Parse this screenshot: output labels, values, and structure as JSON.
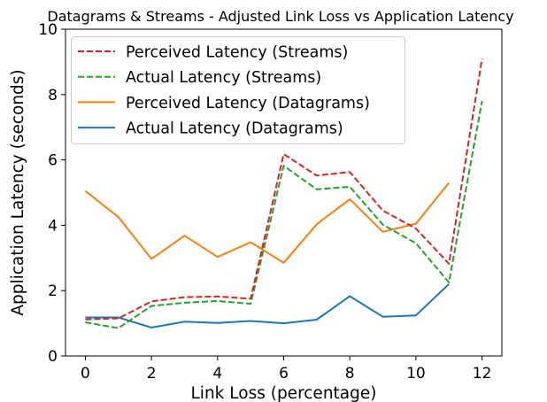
{
  "chart_data": {
    "type": "line",
    "title": "Datagrams & Streams - Adjusted Link Loss vs Application Latency",
    "xlabel": "Link Loss (percentage)",
    "ylabel": "Application Latency (seconds)",
    "xlim": [
      -0.6,
      12.6
    ],
    "ylim": [
      0,
      10
    ],
    "xticks": [
      0,
      2,
      4,
      6,
      8,
      10,
      12
    ],
    "yticks": [
      0,
      2,
      4,
      6,
      8,
      10
    ],
    "grid": false,
    "legend_position": "top-left",
    "series": [
      {
        "name": "Perceived Latency (Streams)",
        "color": "#d62728",
        "style": "dashed",
        "x": [
          0,
          1,
          2,
          3,
          4,
          5,
          6,
          7,
          8,
          9,
          10,
          11,
          12
        ],
        "y": [
          1.12,
          1.15,
          1.67,
          1.8,
          1.82,
          1.75,
          6.18,
          5.52,
          5.63,
          4.45,
          3.9,
          2.82,
          9.1
        ]
      },
      {
        "name": "Actual Latency (Streams)",
        "color": "#2ca02c",
        "style": "dashed",
        "x": [
          0,
          1,
          2,
          3,
          4,
          5,
          6,
          7,
          8,
          9,
          10,
          11,
          12
        ],
        "y": [
          1.03,
          0.85,
          1.53,
          1.63,
          1.68,
          1.6,
          5.82,
          5.1,
          5.18,
          4.02,
          3.45,
          2.25,
          7.8
        ]
      },
      {
        "name": "Perceived Latency (Datagrams)",
        "color": "#ff7f0e",
        "style": "solid",
        "x": [
          0,
          1,
          2,
          3,
          4,
          5,
          6,
          7,
          8,
          9,
          10,
          11
        ],
        "y": [
          5.05,
          4.25,
          2.97,
          3.68,
          3.03,
          3.48,
          2.85,
          4.03,
          4.8,
          3.8,
          4.05,
          5.3
        ]
      },
      {
        "name": "Actual Latency (Datagrams)",
        "color": "#1f77b4",
        "style": "solid",
        "x": [
          0,
          1,
          2,
          3,
          4,
          5,
          6,
          7,
          8,
          9,
          10,
          11
        ],
        "y": [
          1.18,
          1.18,
          0.87,
          1.05,
          1.01,
          1.07,
          1.0,
          1.11,
          1.83,
          1.2,
          1.24,
          2.2
        ]
      }
    ]
  }
}
